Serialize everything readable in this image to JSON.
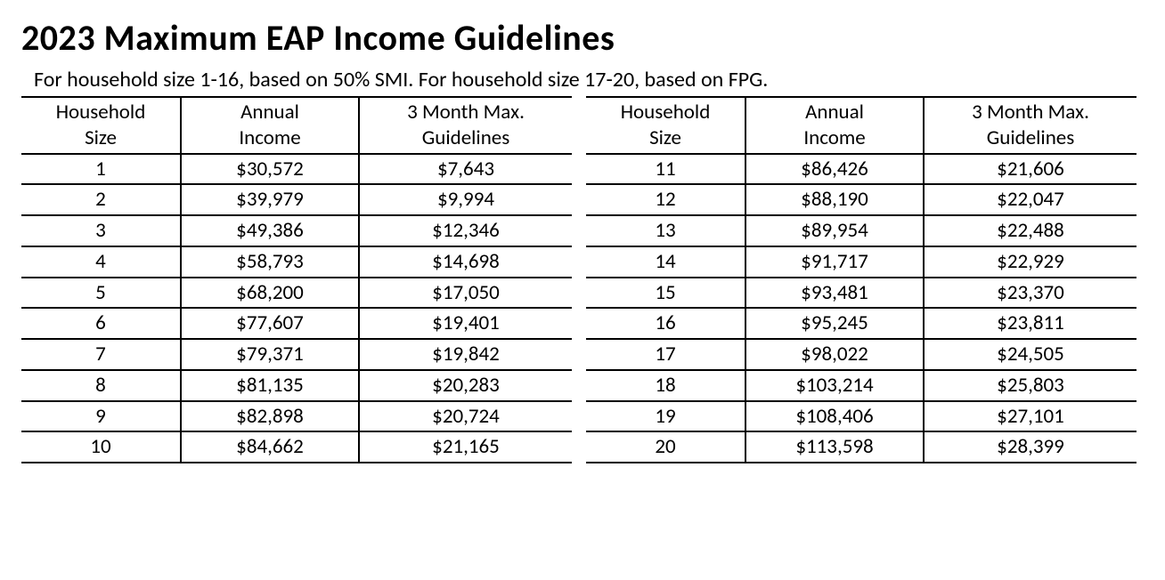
{
  "title": "2023 Maximum EAP Income Guidelines",
  "subtitle": "For household size 1-16, based on 50% SMI. For household size 17-20, based on FPG.",
  "columns": {
    "size": "Household Size",
    "annual": "Annual Income",
    "month": "3 Month Max. Guidelines"
  },
  "left_rows": [
    {
      "size": "1",
      "annual": "$30,572",
      "month": "$7,643"
    },
    {
      "size": "2",
      "annual": "$39,979",
      "month": "$9,994"
    },
    {
      "size": "3",
      "annual": "$49,386",
      "month": "$12,346"
    },
    {
      "size": "4",
      "annual": "$58,793",
      "month": "$14,698"
    },
    {
      "size": "5",
      "annual": "$68,200",
      "month": "$17,050"
    },
    {
      "size": "6",
      "annual": "$77,607",
      "month": "$19,401"
    },
    {
      "size": "7",
      "annual": "$79,371",
      "month": "$19,842"
    },
    {
      "size": "8",
      "annual": "$81,135",
      "month": "$20,283"
    },
    {
      "size": "9",
      "annual": "$82,898",
      "month": "$20,724"
    },
    {
      "size": "10",
      "annual": "$84,662",
      "month": "$21,165"
    }
  ],
  "right_rows": [
    {
      "size": "11",
      "annual": "$86,426",
      "month": "$21,606"
    },
    {
      "size": "12",
      "annual": "$88,190",
      "month": "$22,047"
    },
    {
      "size": "13",
      "annual": "$89,954",
      "month": "$22,488"
    },
    {
      "size": "14",
      "annual": "$91,717",
      "month": "$22,929"
    },
    {
      "size": "15",
      "annual": "$93,481",
      "month": "$23,370"
    },
    {
      "size": "16",
      "annual": "$95,245",
      "month": "$23,811"
    },
    {
      "size": "17",
      "annual": "$98,022",
      "month": "$24,505"
    },
    {
      "size": "18",
      "annual": "$103,214",
      "month": "$25,803"
    },
    {
      "size": "19",
      "annual": "$108,406",
      "month": "$27,101"
    },
    {
      "size": "20",
      "annual": "$113,598",
      "month": "$28,399"
    }
  ],
  "styles": {
    "background_color": "#ffffff",
    "text_color": "#000000",
    "border_color": "#000000",
    "title_fontsize": 40,
    "subtitle_fontsize": 24,
    "cell_fontsize": 23,
    "font_family": "Calibri, Arial, sans-serif",
    "border_width": 2,
    "column_widths": {
      "size": 150,
      "annual": 170,
      "month": 210
    }
  }
}
